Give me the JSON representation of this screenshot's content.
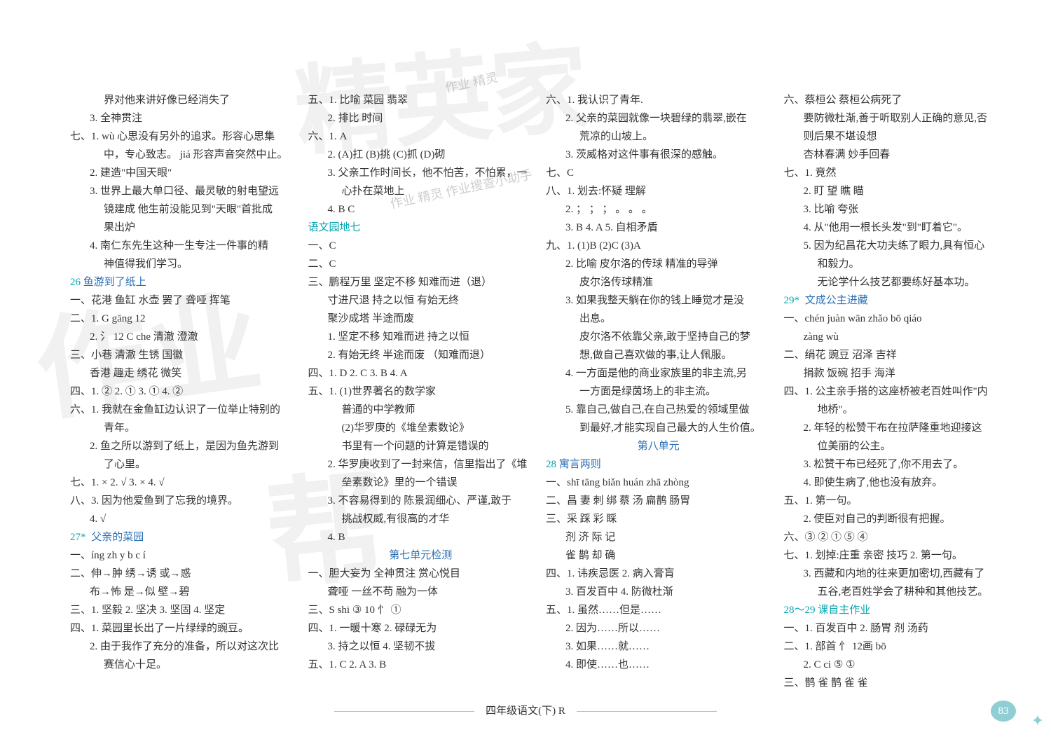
{
  "footer": {
    "text": "四年级语文(下)  R",
    "page_num": "83"
  },
  "watermarks": {
    "wm1": "精英家",
    "wm2": "作业",
    "wm3": "帮",
    "wm4": "",
    "stamp1": "作业\n精灵",
    "stamp2": "作业\n精灵\n作业搜查小助手"
  },
  "col1": [
    {
      "cls": "indent2",
      "t": "界对他来讲好像已经消失了"
    },
    {
      "cls": "indent1",
      "t": "3. 全神贯注"
    },
    {
      "cls": "",
      "t": "七、1. wù  心思没有另外的追求。形容心思集"
    },
    {
      "cls": "indent2",
      "t": "中，专心致志。  jiá  形容声音突然中止。"
    },
    {
      "cls": "indent1",
      "t": "2. 建造\"中国天眼\""
    },
    {
      "cls": "indent1",
      "t": "3. 世界上最大单口径、最灵敏的射电望远"
    },
    {
      "cls": "indent2",
      "t": "镜建成  他生前没能见到\"天眼\"首批成"
    },
    {
      "cls": "indent2",
      "t": "果出炉"
    },
    {
      "cls": "indent1",
      "t": "4. 南仁东先生这种一生专注一件事的精"
    },
    {
      "cls": "indent2",
      "t": "神值得我们学习。"
    },
    {
      "cls": "",
      "html": "<span class='num-cyan'>26</span>  <span class='title-blue'>鱼游到了纸上</span>"
    },
    {
      "cls": "",
      "t": "一、花港  鱼缸  水壶  罢了  聋哑  挥笔"
    },
    {
      "cls": "",
      "t": "二、1. G  gāng  12"
    },
    {
      "cls": "indent1",
      "t": "2. 氵  12  C  che  清澈  澄澈"
    },
    {
      "cls": "",
      "t": "三、小巷  清澈  生锈  国徽"
    },
    {
      "cls": "indent1",
      "t": "香港  趣走  绣花  微笑"
    },
    {
      "cls": "",
      "t": "四、1. ②  2. ①  3. ①  4. ②"
    },
    {
      "cls": "",
      "t": "六、1. 我就在金鱼缸边认识了一位举止特别的"
    },
    {
      "cls": "indent2",
      "t": "青年。"
    },
    {
      "cls": "indent1",
      "t": "2. 鱼之所以游到了纸上，是因为鱼先游到"
    },
    {
      "cls": "indent2",
      "t": "了心里。"
    },
    {
      "cls": "",
      "t": "七、1. ×  2. √  3. ×  4. √"
    },
    {
      "cls": "",
      "t": "八、3. 因为他爱鱼到了忘我的境界。"
    },
    {
      "cls": "indent1",
      "t": "4. √"
    },
    {
      "cls": "",
      "html": "<span class='num-cyan'>27</span><span class='star'>*</span>  <span class='title-blue'>父亲的菜园</span>"
    },
    {
      "cls": "",
      "t": "一、íng  zh  y  b  c  í"
    },
    {
      "cls": "",
      "t": "二、伸→肿  绣→诱  或→惑"
    },
    {
      "cls": "indent1",
      "t": "布→怖  是→似  壁→碧"
    },
    {
      "cls": "",
      "t": "三、1. 坚毅  2. 坚决  3. 坚固  4. 坚定"
    },
    {
      "cls": "",
      "t": "四、1. 菜园里长出了一片绿绿的豌豆。"
    },
    {
      "cls": "indent1",
      "t": "2. 由于我作了充分的准备，所以对这次比"
    },
    {
      "cls": "indent2",
      "t": "赛信心十足。"
    }
  ],
  "col2": [
    {
      "cls": "",
      "t": "五、1. 比喻  菜园  翡翠"
    },
    {
      "cls": "indent1",
      "t": "2. 排比  时间"
    },
    {
      "cls": "",
      "t": "六、1. A"
    },
    {
      "cls": "indent1",
      "t": "2. (A)扛  (B)挑  (C)抓  (D)砌"
    },
    {
      "cls": "indent1",
      "t": "3. 父亲工作时间长，他不怕苦，不怕累，一"
    },
    {
      "cls": "indent2",
      "t": "心扑在菜地上"
    },
    {
      "cls": "indent1",
      "t": "4. B C"
    },
    {
      "cls": "",
      "html": "<span class='title-cyan'>语文园地七</span>"
    },
    {
      "cls": "",
      "t": "一、C"
    },
    {
      "cls": "",
      "t": "二、C"
    },
    {
      "cls": "",
      "t": "三、鹏程万里  坚定不移  知难而进（退）"
    },
    {
      "cls": "indent1",
      "t": "寸进尺退  持之以恒  有始无终"
    },
    {
      "cls": "indent1",
      "t": "聚沙成塔  半途而废"
    },
    {
      "cls": "indent1",
      "t": "1. 坚定不移  知难而进  持之以恒"
    },
    {
      "cls": "indent1",
      "t": "2. 有始无终  半途而废 （知难而退）"
    },
    {
      "cls": "",
      "t": "四、1. D  2. C  3. B  4. A"
    },
    {
      "cls": "",
      "t": "五、1. (1)世界著名的数学家"
    },
    {
      "cls": "indent2",
      "t": "普通的中学教师"
    },
    {
      "cls": "indent2",
      "t": "(2)华罗庚的《堆垒素数论》"
    },
    {
      "cls": "indent2",
      "t": "书里有一个问题的计算是错误的"
    },
    {
      "cls": "indent1",
      "t": "2. 华罗庚收到了一封来信，信里指出了《堆"
    },
    {
      "cls": "indent2",
      "t": "垒素数论》里的一个错误"
    },
    {
      "cls": "indent1",
      "t": "3. 不容易得到的  陈景润细心、严谨,敢于"
    },
    {
      "cls": "indent2",
      "t": "挑战权威,有很高的才华"
    },
    {
      "cls": "indent1",
      "t": "4. B"
    },
    {
      "cls": "title-center",
      "t": "第七单元检测"
    },
    {
      "cls": "",
      "t": "一、胆大妄为  全神贯注  赏心悦目"
    },
    {
      "cls": "indent1",
      "t": "聋哑  一丝不苟  融为一体"
    },
    {
      "cls": "",
      "t": "三、S  shi  ③  10  忄  ①"
    },
    {
      "cls": "",
      "t": "四、1. 一暖十寒  2. 碌碌无为"
    },
    {
      "cls": "indent1",
      "t": "3. 持之以恒  4. 坚韧不拔"
    },
    {
      "cls": "",
      "t": "五、1. C  2. A  3. B"
    }
  ],
  "col3": [
    {
      "cls": "",
      "t": "六、1. 我认识了青年."
    },
    {
      "cls": "indent1",
      "t": "2. 父亲的菜园就像一块碧绿的翡翠,嵌在"
    },
    {
      "cls": "indent2",
      "t": "荒凉的山坡上。"
    },
    {
      "cls": "indent1",
      "t": "3. 茨威格对这件事有很深的感触。"
    },
    {
      "cls": "",
      "t": "七、C"
    },
    {
      "cls": "",
      "t": "八、1. 划去:怀疑  理解"
    },
    {
      "cls": "indent1",
      "t": "2. ；  ；  ；  。  。  。"
    },
    {
      "cls": "indent1",
      "t": "3. B  4. A  5. 自相矛盾"
    },
    {
      "cls": "",
      "t": "九、1. (1)B  (2)C  (3)A"
    },
    {
      "cls": "indent1",
      "t": "2. 比喻  皮尔洛的传球  精准的导弹"
    },
    {
      "cls": "indent2",
      "t": "皮尔洛传球精准"
    },
    {
      "cls": "indent1",
      "t": "3. 如果我整天躺在你的钱上睡觉才是没"
    },
    {
      "cls": "indent2",
      "t": "出息。"
    },
    {
      "cls": "indent2",
      "t": "皮尔洛不依靠父亲,敢于坚持自己的梦"
    },
    {
      "cls": "indent2",
      "t": "想,做自己喜欢做的事,让人佩服。"
    },
    {
      "cls": "indent1",
      "t": "4. 一方面是他的商业家族里的非主流,另"
    },
    {
      "cls": "indent2",
      "t": "一方面是绿茵场上的非主流。"
    },
    {
      "cls": "indent1",
      "t": "5. 靠自己,做自己,在自己热爱的领域里做"
    },
    {
      "cls": "indent2",
      "t": "到最好,才能实现自己最大的人生价值。"
    },
    {
      "cls": "title-center",
      "t": "第八单元"
    },
    {
      "cls": "",
      "html": "<span class='num-cyan'>28</span>  <span class='title-blue'>寓言两则</span>"
    },
    {
      "cls": "",
      "t": "一、shī  tāng  biǎn  huán  zhā  zhòng"
    },
    {
      "cls": "",
      "t": "二、昌  妻  刺  绑  蔡  汤  扁鹊  肠胃"
    },
    {
      "cls": "",
      "t": "三、采  踩  彩  睬"
    },
    {
      "cls": "indent1",
      "t": "剂  济  际  记"
    },
    {
      "cls": "indent1",
      "t": "雀  鹊  却  确"
    },
    {
      "cls": "",
      "t": "四、1. 讳疾忌医  2. 病入膏肓"
    },
    {
      "cls": "indent1",
      "t": "3. 百发百中  4. 防微杜渐"
    },
    {
      "cls": "",
      "t": "五、1. 虽然……但是……"
    },
    {
      "cls": "indent1",
      "t": "2. 因为……所以……"
    },
    {
      "cls": "indent1",
      "t": "3. 如果……就……"
    },
    {
      "cls": "indent1",
      "t": "4. 即使……也……"
    }
  ],
  "col4": [
    {
      "cls": "",
      "t": "六、蔡桓公  蔡桓公病死了"
    },
    {
      "cls": "indent1",
      "t": "要防微杜渐,善于听取别人正确的意见,否"
    },
    {
      "cls": "indent1",
      "t": "则后果不堪设想"
    },
    {
      "cls": "indent1",
      "t": "杏林春满  妙手回春"
    },
    {
      "cls": "",
      "t": "七、1. 竟然"
    },
    {
      "cls": "indent1",
      "t": "2. 盯  望  瞧  瞄"
    },
    {
      "cls": "indent1",
      "t": "3. 比喻  夸张"
    },
    {
      "cls": "indent1",
      "t": "4. 从\"他用一根长头发\"到\"盯着它\"。"
    },
    {
      "cls": "indent1",
      "t": "5. 因为纪昌花大功夫练了眼力,具有恒心"
    },
    {
      "cls": "indent2",
      "t": "和毅力。"
    },
    {
      "cls": "indent2",
      "t": "无论学什么技艺都要练好基本功。"
    },
    {
      "cls": "",
      "html": "<span class='num-cyan'>29</span><span class='star'>*</span>  <span class='title-blue'>文成公主进藏</span>"
    },
    {
      "cls": "",
      "t": "一、chén  juàn  wān  zhǎo  bō  qiáo"
    },
    {
      "cls": "indent1",
      "t": "zàng  wù"
    },
    {
      "cls": "",
      "t": "二、绢花  豌豆  沼泽  吉祥"
    },
    {
      "cls": "indent1",
      "t": "捐款  饭碗  招手  海洋"
    },
    {
      "cls": "",
      "t": "四、1. 公主亲手搭的这座桥被老百姓叫作\"内"
    },
    {
      "cls": "indent2",
      "t": "地桥\"。"
    },
    {
      "cls": "indent1",
      "t": "2. 年轻的松赞干布在拉萨隆重地迎接这"
    },
    {
      "cls": "indent2",
      "t": "位美丽的公主。"
    },
    {
      "cls": "indent1",
      "t": "3. 松赞干布已经死了,你不用去了。"
    },
    {
      "cls": "indent1",
      "t": "4. 即使生病了,他也没有放弃。"
    },
    {
      "cls": "",
      "t": "五、1. 第一句。"
    },
    {
      "cls": "indent1",
      "t": "2. 使臣对自己的判断很有把握。"
    },
    {
      "cls": "",
      "t": "六、③  ②  ①  ⑤  ④"
    },
    {
      "cls": "",
      "t": "七、1. 划掉:庄重  亲密  技巧  2. 第一句。"
    },
    {
      "cls": "indent1",
      "t": "3. 西藏和内地的往来更加密切,西藏有了"
    },
    {
      "cls": "indent2",
      "t": "五谷,老百姓学会了耕种和其他技艺。"
    },
    {
      "cls": "",
      "html": "<span class='title-cyan'>28～29 课自主作业</span>"
    },
    {
      "cls": "",
      "t": "一、1. 百发百中  2. 肠胃  剂  汤药"
    },
    {
      "cls": "",
      "t": "二、1. 部首  忄  12画  bō"
    },
    {
      "cls": "indent1",
      "t": "2. C  ci  ⑤  ①"
    },
    {
      "cls": "",
      "t": "三、鹊  雀 鹊 雀 雀"
    }
  ]
}
